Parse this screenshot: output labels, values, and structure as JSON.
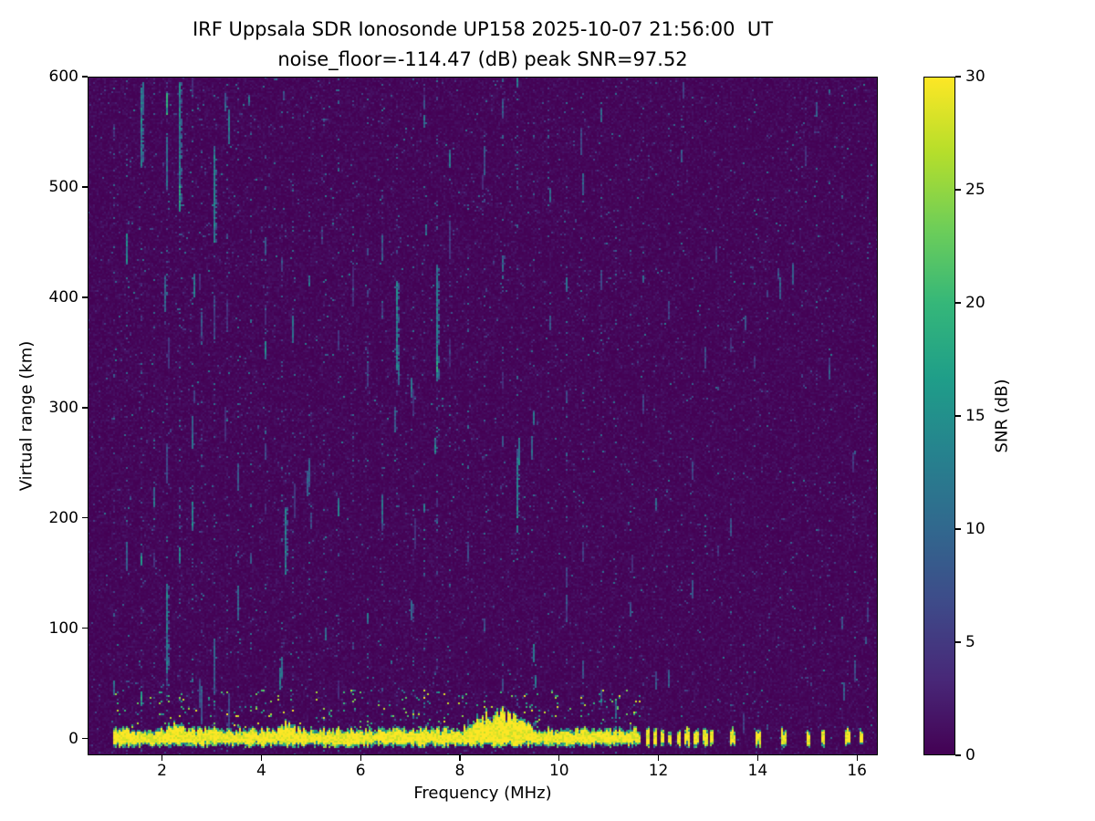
{
  "chart_data": {
    "type": "heatmap",
    "title": "IRF Uppsala SDR Ionosonde UP158 2025-10-07 21:56:00  UT",
    "subtitle": "noise_floor=-114.47 (dB) peak SNR=97.52",
    "xlabel": "Frequency (MHz)",
    "ylabel": "Virtual range (km)",
    "x_range": [
      0.5,
      16.42
    ],
    "y_range": [
      -15,
      600
    ],
    "x_ticks": [
      2,
      4,
      6,
      8,
      10,
      12,
      14,
      16
    ],
    "y_ticks": [
      0,
      100,
      200,
      300,
      400,
      500,
      600
    ],
    "colorbar": {
      "label": "SNR (dB)",
      "ticks": [
        0,
        5,
        10,
        15,
        20,
        25,
        30
      ],
      "range": [
        0,
        30
      ],
      "colormap": "viridis",
      "stops": [
        "#440154",
        "#482878",
        "#3e4a89",
        "#31688e",
        "#26828e",
        "#1f9e89",
        "#35b779",
        "#6ece58",
        "#b5de2b",
        "#fde725"
      ]
    },
    "seed": 98123,
    "background_snr_db": 1,
    "ground_return": {
      "center_km": 0,
      "half_width_km": 7,
      "freq_start": 1.0,
      "freq_end": 11.65,
      "pulse_half_width_mhz": 0.045,
      "pulses": [
        11.78,
        11.93,
        12.08,
        12.23,
        12.42,
        12.58,
        12.76,
        12.95,
        13.08,
        13.5,
        14.02,
        14.52,
        15.02,
        15.32,
        15.82,
        16.08
      ],
      "bulges": [
        {
          "f0": 8.05,
          "f1": 9.55,
          "max_km": 20
        },
        {
          "f0": 4.3,
          "f1": 4.7,
          "max_km": 8
        },
        {
          "f0": 2.0,
          "f1": 2.5,
          "max_km": 7
        }
      ],
      "speckle_above_prob": 0.45
    },
    "rfi_columns": [
      [
        1.05,
        0.45
      ],
      [
        1.3,
        0.5
      ],
      [
        1.6,
        0.65
      ],
      [
        1.85,
        0.45
      ],
      [
        2.1,
        0.75
      ],
      [
        2.35,
        0.8
      ],
      [
        2.6,
        0.5
      ],
      [
        2.8,
        0.45
      ],
      [
        3.05,
        0.7
      ],
      [
        3.3,
        0.6
      ],
      [
        3.55,
        0.5
      ],
      [
        3.8,
        0.45
      ],
      [
        4.1,
        0.5
      ],
      [
        4.4,
        0.45
      ],
      [
        4.65,
        0.5
      ],
      [
        4.95,
        0.35
      ],
      [
        5.25,
        0.45
      ],
      [
        5.55,
        0.4
      ],
      [
        5.85,
        0.5
      ],
      [
        6.15,
        0.4
      ],
      [
        6.45,
        0.5
      ],
      [
        6.75,
        0.55
      ],
      [
        7.05,
        0.5
      ],
      [
        7.3,
        0.4
      ],
      [
        7.55,
        0.75
      ],
      [
        7.8,
        0.4
      ],
      [
        8.15,
        0.45
      ],
      [
        8.5,
        0.5
      ],
      [
        8.85,
        0.4
      ],
      [
        9.15,
        0.5
      ],
      [
        9.5,
        0.4
      ],
      [
        9.8,
        0.35
      ],
      [
        10.15,
        0.4
      ],
      [
        10.5,
        0.35
      ],
      [
        10.85,
        0.3
      ],
      [
        11.15,
        0.3
      ],
      [
        11.45,
        0.25
      ]
    ],
    "periodic_rfi": {
      "start": 11.7,
      "end": 16.3,
      "step": 0.25,
      "intensity": 0.18
    },
    "long_streaks": [
      {
        "f": 2.35,
        "y0": 480,
        "len": 115
      },
      {
        "f": 3.05,
        "y0": 450,
        "len": 85
      },
      {
        "f": 7.55,
        "y0": 325,
        "len": 105
      },
      {
        "f": 6.75,
        "y0": 335,
        "len": 80
      },
      {
        "f": 4.5,
        "y0": 150,
        "len": 60
      },
      {
        "f": 2.1,
        "y0": 60,
        "len": 80
      },
      {
        "f": 9.15,
        "y0": 200,
        "len": 55
      },
      {
        "f": 1.6,
        "y0": 520,
        "len": 70
      }
    ],
    "speckle": {
      "density_low": 0.016,
      "count_mid": 450
    }
  }
}
